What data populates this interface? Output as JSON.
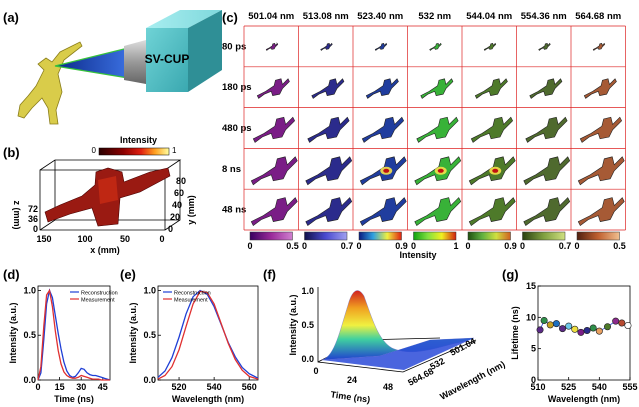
{
  "panels": {
    "a": {
      "label": "(a)",
      "device": "SV-CUP"
    },
    "b": {
      "label": "(b)",
      "title": "Intensity",
      "cmin": "0",
      "cmax": "1",
      "xlabel": "x (mm)",
      "ylabel": "y (mm)",
      "zlabel": "z (mm)",
      "xticks": [
        "150",
        "100",
        "50",
        "0"
      ],
      "yticks": [
        "0",
        "20",
        "40",
        "60",
        "80"
      ],
      "zticks": [
        "0",
        "36",
        "72"
      ]
    },
    "c": {
      "label": "(c)",
      "wavelengths": [
        "501.04 nm",
        "513.08 nm",
        "523.40 nm",
        "532 nm",
        "544.04 nm",
        "554.36 nm",
        "564.68 nm"
      ],
      "times": [
        "80 ps",
        "180 ps",
        "480 ps",
        "8 ns",
        "48 ns"
      ],
      "colors": [
        "#7a1d86",
        "#2b2b8c",
        "#203d9e",
        "#38b238",
        "#4e7a2a",
        "#4f6a2e",
        "#a65a35"
      ],
      "colorbars": [
        {
          "min": "0",
          "max": "0.5"
        },
        {
          "min": "0",
          "max": "0.7"
        },
        {
          "min": "0",
          "max": "0.9"
        },
        {
          "min": "0",
          "max": "1"
        },
        {
          "min": "0",
          "max": "0.9"
        },
        {
          "min": "0",
          "max": "0.7"
        },
        {
          "min": "0",
          "max": "0.5"
        }
      ],
      "colorbar_label": "Intensity"
    },
    "d": {
      "label": "(d)"
    },
    "e": {
      "label": "(e)"
    },
    "f": {
      "label": "(f)",
      "zlabel": "Intensity (a.u.)",
      "xlabel": "Time (ns)",
      "ylabel": "Wavelength (nm)",
      "zticks": [
        "0.0",
        "0.5",
        "1.0"
      ],
      "xticks": [
        "0",
        "24",
        "48"
      ],
      "yticks": [
        "564.68",
        "532",
        "501.04"
      ]
    },
    "g": {
      "label": "(g)"
    }
  },
  "chart_data": [
    {
      "type": "line",
      "panel": "d",
      "xlabel": "Time (ns)",
      "ylabel": "Intensity (a.u.)",
      "xlim": [
        0,
        50
      ],
      "ylim": [
        0,
        1.05
      ],
      "xticks": [
        "0",
        "15",
        "30",
        "45"
      ],
      "yticks": [
        "0.0",
        "0.5",
        "1.0"
      ],
      "legend": "top-right",
      "series": [
        {
          "name": "Reconstruction",
          "color": "#1f3fd6",
          "x": [
            0,
            2,
            4,
            6,
            8,
            10,
            12,
            14,
            16,
            18,
            20,
            22,
            24,
            26,
            28,
            30,
            32,
            34,
            36,
            38,
            40,
            42,
            44,
            46,
            48,
            50
          ],
          "y": [
            0.0,
            0.08,
            0.45,
            0.85,
            1.0,
            0.92,
            0.72,
            0.52,
            0.35,
            0.2,
            0.1,
            0.05,
            0.03,
            0.04,
            0.08,
            0.13,
            0.12,
            0.08,
            0.06,
            0.05,
            0.05,
            0.04,
            0.03,
            0.02,
            0.01,
            0.0
          ]
        },
        {
          "name": "Measurement",
          "color": "#e03030",
          "x": [
            0,
            2,
            4,
            6,
            8,
            10,
            12,
            14,
            16,
            18,
            20,
            22,
            24,
            26,
            28,
            30,
            32,
            34,
            36,
            38,
            40,
            42,
            44,
            46,
            48,
            50
          ],
          "y": [
            0.0,
            0.15,
            0.6,
            0.95,
            1.0,
            0.82,
            0.55,
            0.33,
            0.18,
            0.09,
            0.05,
            0.03,
            0.02,
            0.02,
            0.03,
            0.05,
            0.04,
            0.03,
            0.02,
            0.01,
            0.01,
            0.01,
            0.0,
            0.0,
            0.0,
            0.0
          ]
        }
      ]
    },
    {
      "type": "line",
      "panel": "e",
      "xlabel": "Wavelength (nm)",
      "ylabel": "Intensity (a.u.)",
      "xlim": [
        508,
        565
      ],
      "ylim": [
        0,
        1.05
      ],
      "xticks": [
        "520",
        "540",
        "560"
      ],
      "yticks": [
        "0.0",
        "0.5",
        "1.0"
      ],
      "legend": "top-left",
      "series": [
        {
          "name": "Reconstruction",
          "color": "#1f3fd6",
          "x": [
            508,
            512,
            516,
            520,
            524,
            528,
            532,
            536,
            540,
            544,
            548,
            552,
            556,
            560,
            565
          ],
          "y": [
            0.03,
            0.1,
            0.25,
            0.48,
            0.74,
            0.93,
            1.0,
            0.96,
            0.82,
            0.62,
            0.42,
            0.26,
            0.14,
            0.07,
            0.02
          ]
        },
        {
          "name": "Measurement",
          "color": "#e03030",
          "x": [
            508,
            512,
            516,
            520,
            524,
            528,
            532,
            536,
            540,
            544,
            548,
            552,
            556,
            560,
            565
          ],
          "y": [
            0.01,
            0.05,
            0.15,
            0.34,
            0.6,
            0.85,
            0.99,
            0.98,
            0.85,
            0.63,
            0.41,
            0.23,
            0.11,
            0.04,
            0.01
          ]
        }
      ]
    },
    {
      "type": "scatter",
      "panel": "g",
      "xlabel": "Wavelength (nm)",
      "ylabel": "Lifetime (ns)",
      "xlim": [
        510,
        555
      ],
      "ylim": [
        0,
        15
      ],
      "xticks": [
        "510",
        "525",
        "540",
        "555"
      ],
      "yticks": [
        "0",
        "5",
        "10",
        "15"
      ],
      "points": [
        {
          "x": 511,
          "y": 8.0,
          "color": "#5b2a86"
        },
        {
          "x": 513,
          "y": 9.5,
          "color": "#2f8f4a"
        },
        {
          "x": 516,
          "y": 8.8,
          "color": "#c8a020"
        },
        {
          "x": 519,
          "y": 9.0,
          "color": "#1e6fbf"
        },
        {
          "x": 522,
          "y": 8.2,
          "color": "#5b2a86"
        },
        {
          "x": 525,
          "y": 8.6,
          "color": "#6ec8e8"
        },
        {
          "x": 528,
          "y": 8.1,
          "color": "#f0e040"
        },
        {
          "x": 531,
          "y": 7.6,
          "color": "#7a1d86"
        },
        {
          "x": 534,
          "y": 7.9,
          "color": "#2b2b8c"
        },
        {
          "x": 537,
          "y": 8.3,
          "color": "#2f8f4a"
        },
        {
          "x": 540,
          "y": 7.8,
          "color": "#e8a060"
        },
        {
          "x": 544,
          "y": 8.5,
          "color": "#4e7a2a"
        },
        {
          "x": 548,
          "y": 9.4,
          "color": "#8c2a8c"
        },
        {
          "x": 551,
          "y": 9.1,
          "color": "#b84a30"
        },
        {
          "x": 554,
          "y": 8.7,
          "color": "#ffffff"
        }
      ]
    }
  ]
}
